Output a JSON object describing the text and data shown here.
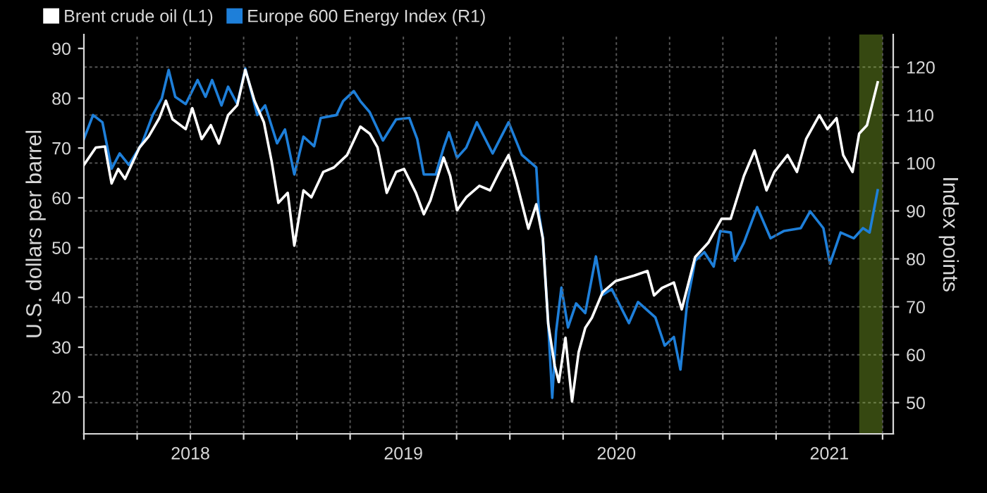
{
  "chart_data": {
    "type": "line",
    "xlim": [
      2018.0,
      2021.8
    ],
    "xticks": [
      {
        "value": 2018.0,
        "label": null
      },
      {
        "value": 2018.25,
        "label": null
      },
      {
        "value": 2018.5,
        "label": "2018"
      },
      {
        "value": 2018.75,
        "label": null
      },
      {
        "value": 2019.0,
        "label": null
      },
      {
        "value": 2019.25,
        "label": null
      },
      {
        "value": 2019.5,
        "label": "2019"
      },
      {
        "value": 2019.75,
        "label": null
      },
      {
        "value": 2020.0,
        "label": null
      },
      {
        "value": 2020.25,
        "label": null
      },
      {
        "value": 2020.5,
        "label": "2020"
      },
      {
        "value": 2020.75,
        "label": null
      },
      {
        "value": 2021.0,
        "label": null
      },
      {
        "value": 2021.25,
        "label": null
      },
      {
        "value": 2021.5,
        "label": "2021"
      },
      {
        "value": 2021.75,
        "label": null
      }
    ],
    "ylabel": "U.S. dollars per barrel",
    "ylim": [
      12.6,
      92.8
    ],
    "yticks": [
      20,
      30,
      40,
      50,
      60,
      70,
      80,
      90
    ],
    "y2label": "Index points",
    "y2lim": [
      43.5,
      126.8
    ],
    "y2ticks": [
      50,
      60,
      70,
      80,
      90,
      100,
      110,
      120
    ],
    "grid": true,
    "legend": "top left",
    "marker": "none",
    "line_style": "solid",
    "bands": [
      {
        "axis": "x",
        "from": 2021.646,
        "to": 2021.745,
        "color": "#9acd32"
      }
    ],
    "series": [
      {
        "name": "Brent crude oil (L1)",
        "color": "#ffffff",
        "x": [
          2018.0,
          2018.056,
          2018.099,
          2018.13,
          2018.161,
          2018.193,
          2018.261,
          2018.304,
          2018.354,
          2018.385,
          2018.416,
          2018.478,
          2018.509,
          2018.553,
          2018.596,
          2018.634,
          2018.677,
          2018.72,
          2018.758,
          2018.801,
          2018.845,
          2018.882,
          2018.913,
          2018.957,
          2018.988,
          2019.031,
          2019.068,
          2019.124,
          2019.174,
          2019.236,
          2019.298,
          2019.342,
          2019.379,
          2019.422,
          2019.466,
          2019.503,
          2019.559,
          2019.596,
          2019.627,
          2019.689,
          2019.72,
          2019.752,
          2019.795,
          2019.857,
          2019.907,
          2019.95,
          2019.994,
          2020.031,
          2020.087,
          2020.124,
          2020.155,
          2020.18,
          2020.211,
          2020.23,
          2020.261,
          2020.292,
          2020.323,
          2020.354,
          2020.385,
          2020.435,
          2020.497,
          2020.584,
          2020.646,
          2020.677,
          2020.714,
          2020.77,
          2020.807,
          2020.87,
          2020.932,
          2020.994,
          2021.037,
          2021.099,
          2021.149,
          2021.205,
          2021.242,
          2021.304,
          2021.348,
          2021.391,
          2021.453,
          2021.491,
          2021.534,
          2021.565,
          2021.609,
          2021.64,
          2021.677,
          2021.727
        ],
        "values": [
          66.6,
          70.1,
          70.3,
          62.9,
          65.8,
          63.8,
          70.1,
          72.3,
          76.0,
          79.5,
          75.8,
          73.8,
          78.0,
          71.8,
          74.6,
          70.9,
          76.6,
          78.6,
          85.7,
          79.5,
          75.2,
          67.2,
          59.0,
          61.0,
          50.4,
          61.5,
          60.1,
          65.2,
          66.1,
          68.6,
          74.3,
          72.9,
          70.1,
          61.0,
          65.2,
          65.8,
          61.0,
          56.7,
          59.5,
          68.1,
          64.4,
          57.5,
          60.1,
          62.4,
          61.5,
          65.2,
          68.6,
          63.2,
          53.8,
          58.7,
          51.8,
          34.7,
          26.2,
          23.0,
          31.9,
          19.1,
          29.0,
          33.9,
          35.9,
          41.0,
          43.3,
          44.4,
          45.3,
          40.4,
          41.9,
          43.0,
          37.6,
          48.1,
          51.0,
          55.8,
          55.8,
          64.4,
          69.5,
          61.5,
          65.2,
          68.6,
          65.2,
          71.8,
          76.6,
          73.8,
          76.0,
          68.6,
          65.2,
          72.9,
          74.6,
          83.2
        ]
      },
      {
        "name": "Europe 600 Energy Index (R1)",
        "color": "#1e7fd9",
        "axis": "y2",
        "x": [
          2018.0,
          2018.043,
          2018.087,
          2018.13,
          2018.168,
          2018.211,
          2018.273,
          2018.323,
          2018.366,
          2018.398,
          2018.429,
          2018.478,
          2018.534,
          2018.571,
          2018.602,
          2018.646,
          2018.677,
          2018.72,
          2018.758,
          2018.814,
          2018.851,
          2018.907,
          2018.944,
          2018.988,
          2019.031,
          2019.081,
          2019.112,
          2019.186,
          2019.217,
          2019.267,
          2019.298,
          2019.342,
          2019.404,
          2019.466,
          2019.528,
          2019.565,
          2019.596,
          2019.652,
          2019.689,
          2019.714,
          2019.752,
          2019.795,
          2019.845,
          2019.919,
          2019.994,
          2020.056,
          2020.124,
          2020.137,
          2020.155,
          2020.18,
          2020.199,
          2020.217,
          2020.242,
          2020.273,
          2020.311,
          2020.354,
          2020.404,
          2020.435,
          2020.478,
          2020.559,
          2020.602,
          2020.683,
          2020.727,
          2020.77,
          2020.801,
          2020.832,
          2020.87,
          2020.913,
          2020.957,
          2020.988,
          2021.037,
          2021.056,
          2021.099,
          2021.161,
          2021.224,
          2021.286,
          2021.366,
          2021.41,
          2021.472,
          2021.503,
          2021.553,
          2021.615,
          2021.658,
          2021.689,
          2021.727
        ],
        "values": [
          105.0,
          110.0,
          108.5,
          98.8,
          102.0,
          99.6,
          104.1,
          110.0,
          113.5,
          119.4,
          113.8,
          112.3,
          117.3,
          113.8,
          117.3,
          112.0,
          115.9,
          112.3,
          119.7,
          110.0,
          112.0,
          104.1,
          107.0,
          97.6,
          105.5,
          103.5,
          109.4,
          110.0,
          112.9,
          115.0,
          112.9,
          110.6,
          104.7,
          109.1,
          109.4,
          105.0,
          97.6,
          97.6,
          103.2,
          106.4,
          101.1,
          103.2,
          108.5,
          102.0,
          108.5,
          101.7,
          99.1,
          89.3,
          84.3,
          66.6,
          51.0,
          64.8,
          74.0,
          65.7,
          70.7,
          68.7,
          80.5,
          72.5,
          73.7,
          66.6,
          71.0,
          67.8,
          61.9,
          63.7,
          56.9,
          70.7,
          79.6,
          81.4,
          78.4,
          85.8,
          85.5,
          79.6,
          83.4,
          90.8,
          84.3,
          85.8,
          86.4,
          89.9,
          86.4,
          79.0,
          85.5,
          84.3,
          86.4,
          85.5,
          94.3
        ]
      }
    ]
  }
}
